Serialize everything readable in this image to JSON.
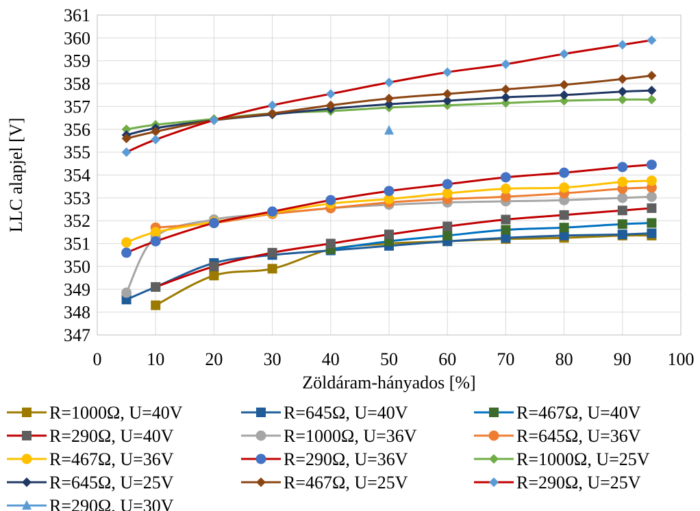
{
  "chart_data": {
    "type": "line",
    "xlabel": "Zöldáram-hányados [%]",
    "ylabel": "LLC alapjel [V]",
    "xlim": [
      0,
      100
    ],
    "ylim": [
      347,
      361
    ],
    "x_ticks": [
      0,
      10,
      20,
      30,
      40,
      50,
      60,
      70,
      80,
      90,
      100
    ],
    "y_ticks": [
      347,
      348,
      349,
      350,
      351,
      352,
      353,
      354,
      355,
      356,
      357,
      358,
      359,
      360,
      361
    ],
    "grid": "vertical and horizontal",
    "legend_position": "bottom",
    "series": [
      {
        "name": "R=1000Ω, U=40V",
        "color": "#9C7A00",
        "marker": "square",
        "x": [
          10,
          20,
          30,
          40,
          50,
          60,
          70,
          80,
          90,
          95
        ],
        "y": [
          348.3,
          349.6,
          349.9,
          350.75,
          351.0,
          351.1,
          351.2,
          351.25,
          351.35,
          351.35
        ]
      },
      {
        "name": "R=645Ω, U=40V",
        "color": "#1F5C99",
        "marker": "square",
        "x": [
          5,
          10,
          20,
          30,
          40,
          50,
          60,
          70,
          80,
          90,
          95
        ],
        "y": [
          348.55,
          349.1,
          350.15,
          350.5,
          350.7,
          350.9,
          351.1,
          351.25,
          351.35,
          351.4,
          351.45
        ]
      },
      {
        "name": "R=467Ω, U=40V",
        "color": "#0070C0",
        "marker": "square",
        "marker_color": "#3D6B2A",
        "x": [
          40,
          50,
          60,
          70,
          80,
          90,
          95
        ],
        "y": [
          350.75,
          351.1,
          351.35,
          351.6,
          351.7,
          351.85,
          351.9
        ]
      },
      {
        "name": "R=290Ω, U=40V",
        "color": "#C00000",
        "marker": "square",
        "marker_color": "#5F5F5F",
        "x": [
          10,
          20,
          30,
          40,
          50,
          60,
          70,
          80,
          90,
          95
        ],
        "y": [
          349.1,
          350.0,
          350.6,
          351.0,
          351.4,
          351.75,
          352.05,
          352.25,
          352.45,
          352.55
        ]
      },
      {
        "name": "R=1000Ω, U=36V",
        "color": "#A5A5A5",
        "marker": "circle",
        "x": [
          5,
          10,
          20,
          30,
          40,
          50,
          60,
          70,
          80,
          90,
          95
        ],
        "y": [
          348.85,
          351.3,
          352.05,
          352.3,
          352.55,
          352.7,
          352.8,
          352.85,
          352.9,
          353.0,
          353.05
        ]
      },
      {
        "name": "R=645Ω, U=36V",
        "color": "#ED7D31",
        "marker": "circle",
        "x": [
          10,
          20,
          30,
          40,
          50,
          60,
          70,
          80,
          90,
          95
        ],
        "y": [
          351.7,
          351.9,
          352.3,
          352.55,
          352.8,
          352.95,
          353.05,
          353.2,
          353.4,
          353.45
        ]
      },
      {
        "name": "R=467Ω, U=36V",
        "color": "#FFC000",
        "marker": "circle",
        "x": [
          5,
          10,
          20,
          30,
          40,
          50,
          60,
          70,
          80,
          90,
          95
        ],
        "y": [
          351.05,
          351.5,
          351.95,
          352.35,
          352.75,
          352.95,
          353.2,
          353.4,
          353.45,
          353.7,
          353.75
        ]
      },
      {
        "name": "R=290Ω, U=36V",
        "color": "#C00000",
        "marker": "circle",
        "marker_color": "#4472C4",
        "x": [
          5,
          10,
          20,
          30,
          40,
          50,
          60,
          70,
          80,
          90,
          95
        ],
        "y": [
          350.6,
          351.1,
          351.9,
          352.4,
          352.9,
          353.3,
          353.6,
          353.9,
          354.1,
          354.35,
          354.45
        ]
      },
      {
        "name": "R=1000Ω, U=25V",
        "color": "#70AD47",
        "marker": "diamond",
        "x": [
          5,
          10,
          20,
          30,
          40,
          50,
          60,
          70,
          80,
          90,
          95
        ],
        "y": [
          356.0,
          356.2,
          356.45,
          356.7,
          356.8,
          356.95,
          357.05,
          357.15,
          357.25,
          357.3,
          357.3
        ]
      },
      {
        "name": "R=645Ω, U=25V",
        "color": "#203864",
        "marker": "diamond",
        "x": [
          5,
          10,
          20,
          30,
          40,
          50,
          60,
          70,
          80,
          90,
          95
        ],
        "y": [
          355.75,
          356.05,
          356.4,
          356.65,
          356.9,
          357.1,
          357.25,
          357.4,
          357.5,
          357.65,
          357.7
        ]
      },
      {
        "name": "R=467Ω, U=25V",
        "color": "#8B4513",
        "marker": "diamond",
        "x": [
          5,
          10,
          20,
          30,
          40,
          50,
          60,
          70,
          80,
          90,
          95
        ],
        "y": [
          355.6,
          355.9,
          356.4,
          356.7,
          357.05,
          357.35,
          357.55,
          357.75,
          357.95,
          358.2,
          358.35
        ]
      },
      {
        "name": "R=290Ω, U=25V",
        "color": "#C00000",
        "marker": "diamond",
        "marker_color": "#5B9BD5",
        "x": [
          5,
          10,
          20,
          30,
          40,
          50,
          60,
          70,
          80,
          90,
          95
        ],
        "y": [
          355.0,
          355.55,
          356.4,
          357.05,
          357.55,
          358.05,
          358.5,
          358.85,
          359.3,
          359.7,
          359.9
        ]
      },
      {
        "name": "R=290Ω, U=30V",
        "color": "#5B9BD5",
        "marker": "triangle",
        "x": [
          50
        ],
        "y": [
          355.95
        ]
      }
    ]
  }
}
